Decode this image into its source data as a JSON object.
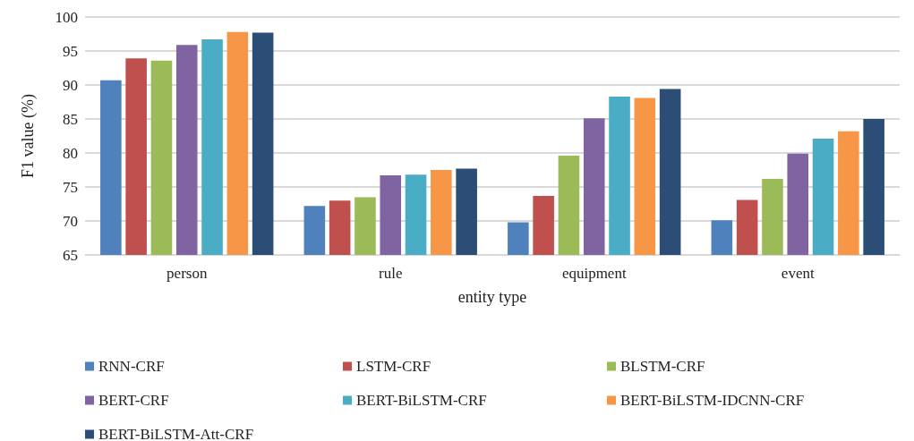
{
  "chart_data": {
    "type": "bar",
    "xlabel": "entity type",
    "ylabel": "F1 value (%)",
    "categories": [
      "person",
      "rule",
      "equipment",
      "event"
    ],
    "series": [
      {
        "name": "RNN-CRF",
        "color": "#4f81bd",
        "values": [
          90.7,
          72.2,
          69.8,
          70.1
        ]
      },
      {
        "name": "LSTM-CRF",
        "color": "#c0504d",
        "values": [
          93.9,
          73.0,
          73.7,
          73.1
        ]
      },
      {
        "name": "BLSTM-CRF",
        "color": "#9bbb59",
        "values": [
          93.6,
          73.5,
          79.6,
          76.2
        ]
      },
      {
        "name": "BERT-CRF",
        "color": "#8064a2",
        "values": [
          95.9,
          76.7,
          85.1,
          79.9
        ]
      },
      {
        "name": "BERT-BiLSTM-CRF",
        "color": "#4bacc6",
        "values": [
          96.7,
          76.8,
          88.3,
          82.1
        ]
      },
      {
        "name": "BERT-BiLSTM-IDCNN-CRF",
        "color": "#f79646",
        "values": [
          97.8,
          77.5,
          88.1,
          83.2
        ]
      },
      {
        "name": "BERT-BiLSTM-Att-CRF",
        "color": "#2c4d75",
        "values": [
          97.7,
          77.7,
          89.4,
          85.0
        ]
      }
    ],
    "ylim": [
      65,
      100
    ],
    "yticks": [
      65,
      70,
      75,
      80,
      85,
      90,
      95,
      100
    ],
    "grid": "y",
    "legend": "bottom"
  }
}
